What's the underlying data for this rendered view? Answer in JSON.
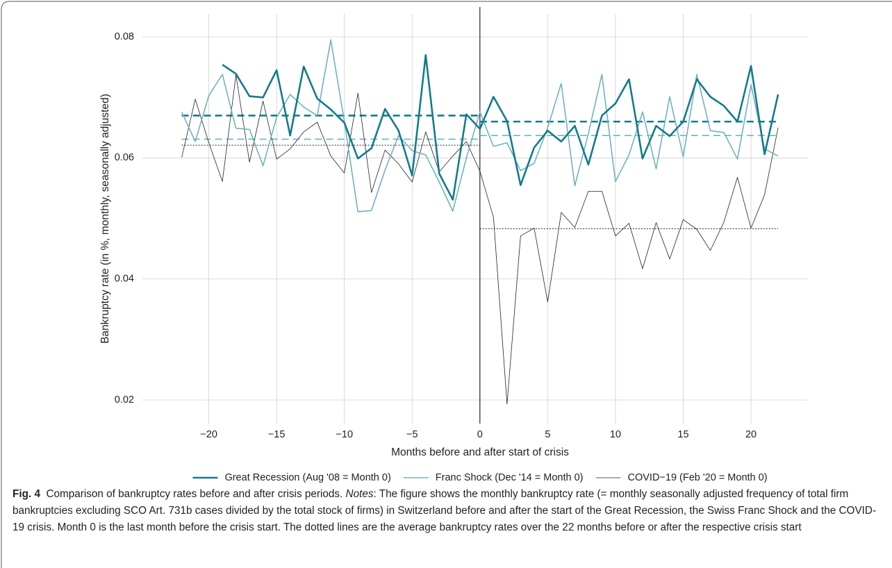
{
  "chart_data": {
    "type": "line",
    "x_label": "Months before and after start of crisis",
    "y_label": "Bankruptcy rate (in %, monthly, seasonally adjusted)",
    "xlim": [
      -24.9,
      24.2
    ],
    "ylim": [
      0.0161,
      0.0838
    ],
    "xticks": [
      {
        "value": -20,
        "label": "−20"
      },
      {
        "value": -15,
        "label": "−15"
      },
      {
        "value": -10,
        "label": "−10"
      },
      {
        "value": -5,
        "label": "−5"
      },
      0,
      5,
      10,
      15,
      20
    ],
    "yticks": [
      0.02,
      0.04,
      0.06,
      0.08
    ],
    "grid": true,
    "vline": 0,
    "legend": "bottom",
    "x": [
      -22,
      -21,
      -20,
      -19,
      -18,
      -17,
      -16,
      -15,
      -14,
      -13,
      -12,
      -11,
      -10,
      -9,
      -8,
      -7,
      -6,
      -5,
      -4,
      -3,
      -2,
      -1,
      0,
      1,
      2,
      3,
      4,
      5,
      6,
      7,
      8,
      9,
      10,
      11,
      12,
      13,
      14,
      15,
      16,
      17,
      18,
      19,
      20,
      21,
      22
    ],
    "series": [
      {
        "name": "Great Recession (Aug '08 = Month 0)",
        "color": "#137b8b",
        "width": 2.6,
        "mean_style": "dashed",
        "mean_before": 0.067,
        "mean_after": 0.066,
        "values": [
          null,
          null,
          null,
          0.0754,
          0.0739,
          0.0702,
          0.07,
          0.0745,
          0.0637,
          0.0751,
          0.0698,
          0.068,
          0.0658,
          0.0599,
          0.0616,
          0.0681,
          0.0645,
          0.0571,
          0.077,
          0.0574,
          0.0531,
          0.0672,
          0.0648,
          0.0701,
          0.0661,
          0.0555,
          0.0617,
          0.0645,
          0.0627,
          0.0653,
          0.0589,
          0.067,
          0.069,
          0.073,
          0.0599,
          0.0653,
          0.0636,
          0.066,
          0.073,
          0.0701,
          0.0686,
          0.066,
          0.0752,
          0.0606,
          0.0705
        ]
      },
      {
        "name": "Franc Shock (Dec '14 = Month 0)",
        "color": "#6fb3c0",
        "width": 1.6,
        "mean_style": "dashed",
        "mean_before": 0.0631,
        "mean_after": 0.0637,
        "values": [
          0.0676,
          0.0627,
          0.0703,
          0.0738,
          0.0649,
          0.0647,
          0.0587,
          0.0667,
          0.0705,
          0.0684,
          0.067,
          0.0795,
          0.066,
          0.0511,
          0.0513,
          0.058,
          0.0637,
          0.0612,
          0.0605,
          0.056,
          0.0512,
          0.06,
          0.0676,
          0.0619,
          0.0625,
          0.0579,
          0.0591,
          0.065,
          0.0723,
          0.0554,
          0.064,
          0.0738,
          0.0561,
          0.0605,
          0.0676,
          0.0582,
          0.0701,
          0.0602,
          0.0738,
          0.0645,
          0.0642,
          0.0598,
          0.0721,
          0.0615,
          0.0603
        ]
      },
      {
        "name": "COVID−19 (Feb '20 = Month 0)",
        "color": "#222222",
        "width": 0.8,
        "mean_style": "dotted",
        "mean_before": 0.0621,
        "mean_after": 0.0483,
        "values": [
          0.0601,
          0.0697,
          0.0625,
          0.0561,
          0.0737,
          0.0593,
          0.0694,
          0.0598,
          0.0615,
          0.0643,
          0.0659,
          0.0603,
          0.0575,
          0.0707,
          0.0543,
          0.0613,
          0.059,
          0.056,
          0.0643,
          0.0577,
          0.0603,
          0.0627,
          0.0578,
          0.0502,
          0.0193,
          0.0471,
          0.0484,
          0.0362,
          0.051,
          0.0485,
          0.0545,
          0.0545,
          0.0471,
          0.0492,
          0.0417,
          0.0493,
          0.0433,
          0.0498,
          0.0482,
          0.0447,
          0.0494,
          0.0568,
          0.0484,
          0.0539,
          0.065
        ]
      }
    ]
  },
  "caption": {
    "label": "Fig. 4",
    "title": "Comparison of bankruptcy rates before and after crisis periods.",
    "notes_label": "Notes",
    "notes": ": The figure shows the monthly bankruptcy rate (= monthly seasonally adjusted frequency of total firm bankruptcies excluding SCO Art. 731b cases divided by the total stock of firms) in Switzerland before and after the start of the Great Recession, the Swiss Franc Shock and the COVID-19 crisis. Month 0 is the last month before the crisis start. The dotted lines are the average bankruptcy rates over the 22 months before or after the respective crisis start"
  }
}
